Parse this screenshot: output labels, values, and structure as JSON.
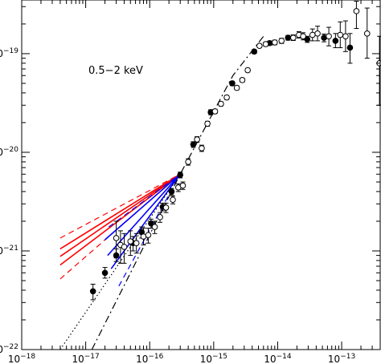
{
  "chart_data": {
    "type": "scatter",
    "title": "",
    "xlabel": "",
    "ylabel": "",
    "annotation": "0.5−2 keV",
    "x_scale": "log",
    "y_scale": "log",
    "xlim": [
      1e-18,
      4e-13
    ],
    "ylim": [
      1e-22,
      3.5e-19
    ],
    "x_tick_labels": [
      {
        "value": 1e-18,
        "mant": "10",
        "exp": "−18"
      },
      {
        "value": 1e-17,
        "mant": "10",
        "exp": "−17"
      },
      {
        "value": 1e-16,
        "mant": "10",
        "exp": "−16"
      },
      {
        "value": 1e-15,
        "mant": "10",
        "exp": "−15"
      },
      {
        "value": 1e-14,
        "mant": "10",
        "exp": "−14"
      },
      {
        "value": 1e-13,
        "mant": "10",
        "exp": "−13"
      }
    ],
    "y_tick_labels": [
      {
        "value": 1e-22,
        "mant": "10",
        "exp": "−22"
      },
      {
        "value": 1e-21,
        "mant": "10",
        "exp": "−21"
      },
      {
        "value": 1e-20,
        "mant": "10",
        "exp": "−20"
      },
      {
        "value": 1e-19,
        "mant": "10",
        "exp": "−19"
      }
    ],
    "series": [
      {
        "marker": "filled-circle",
        "points": [
          {
            "x": 1.3e-17,
            "y": 3.9e-22,
            "lo": 3.2e-22,
            "hi": 4.6e-22
          },
          {
            "x": 2e-17,
            "y": 6e-22,
            "lo": 5.3e-22,
            "hi": 6.8e-22
          },
          {
            "x": 3e-17,
            "y": 9e-22,
            "lo": 7.8e-22,
            "hi": 1.05e-21
          },
          {
            "x": 5.5e-17,
            "y": 1.2e-21,
            "lo": 1e-21,
            "hi": 1.4e-21
          },
          {
            "x": 7.5e-17,
            "y": 1.55e-21,
            "lo": 1.35e-21,
            "hi": 1.75e-21
          },
          {
            "x": 1.05e-16,
            "y": 1.9e-21,
            "lo": 1.7e-21,
            "hi": 2.1e-21
          },
          {
            "x": 1.6e-16,
            "y": 2.8e-21,
            "lo": 2.55e-21,
            "hi": 3.05e-21
          },
          {
            "x": 2.2e-16,
            "y": 4e-21,
            "lo": 3.7e-21,
            "hi": 4.3e-21
          },
          {
            "x": 3e-16,
            "y": 5.9e-21,
            "lo": 5.5e-21,
            "hi": 6.3e-21
          },
          {
            "x": 4.8e-16,
            "y": 1.2e-20,
            "lo": 1.12e-20,
            "hi": 1.28e-20
          },
          {
            "x": 9e-16,
            "y": 2.55e-20,
            "lo": 2.4e-20,
            "hi": 2.7e-20
          },
          {
            "x": 1.95e-15,
            "y": 5e-20,
            "lo": 4.75e-20,
            "hi": 5.25e-20
          },
          {
            "x": 4.3e-15,
            "y": 1.05e-19,
            "lo": 1e-19,
            "hi": 1.1e-19
          },
          {
            "x": 7.5e-15,
            "y": 1.28e-19,
            "lo": 1.22e-19,
            "hi": 1.34e-19
          },
          {
            "x": 1.45e-14,
            "y": 1.45e-19,
            "lo": 1.37e-19,
            "hi": 1.53e-19
          },
          {
            "x": 2.9e-14,
            "y": 1.4e-19,
            "lo": 1.3e-19,
            "hi": 1.5e-19
          },
          {
            "x": 5.3e-14,
            "y": 1.45e-19,
            "lo": 1.32e-19,
            "hi": 1.58e-19
          },
          {
            "x": 8e-14,
            "y": 1.35e-19,
            "lo": 1.15e-19,
            "hi": 1.6e-19
          },
          {
            "x": 1.35e-13,
            "y": 1.15e-19,
            "lo": 8e-20,
            "hi": 1.6e-19
          }
        ]
      },
      {
        "marker": "open-circle",
        "points": [
          {
            "x": 3e-17,
            "y": 1.35e-21,
            "lo": 8.5e-22,
            "hi": 2e-21
          },
          {
            "x": 3.5e-17,
            "y": 1.15e-21,
            "lo": 7.5e-22,
            "hi": 1.6e-21
          },
          {
            "x": 4e-17,
            "y": 1.1e-21,
            "lo": 7.5e-22,
            "hi": 1.5e-21
          },
          {
            "x": 5e-17,
            "y": 1.25e-21,
            "lo": 9e-22,
            "hi": 1.6e-21
          },
          {
            "x": 6.2e-17,
            "y": 1.2e-21,
            "lo": 9.5e-22,
            "hi": 1.5e-21
          },
          {
            "x": 8e-17,
            "y": 1.4e-21,
            "lo": 1.15e-21,
            "hi": 1.7e-21
          },
          {
            "x": 9.5e-17,
            "y": 1.45e-21,
            "lo": 1.2e-21,
            "hi": 1.7e-21
          },
          {
            "x": 1.2e-16,
            "y": 1.75e-21,
            "lo": 1.5e-21,
            "hi": 2e-21
          },
          {
            "x": 1.45e-16,
            "y": 2.2e-21,
            "lo": 1.95e-21,
            "hi": 2.45e-21
          },
          {
            "x": 1.8e-16,
            "y": 2.75e-21,
            "lo": 2.45e-21,
            "hi": 3.05e-21
          },
          {
            "x": 2.3e-16,
            "y": 3.3e-21,
            "lo": 3e-21,
            "hi": 3.6e-21
          },
          {
            "x": 2.8e-16,
            "y": 4.4e-21,
            "lo": 4e-21,
            "hi": 4.8e-21
          },
          {
            "x": 3.3e-16,
            "y": 4.6e-21,
            "lo": 4.2e-21,
            "hi": 5e-21
          },
          {
            "x": 4e-16,
            "y": 8e-21,
            "lo": 7.4e-21,
            "hi": 8.6e-21
          },
          {
            "x": 5.5e-16,
            "y": 1.35e-20,
            "lo": 1.26e-20,
            "hi": 1.44e-20
          },
          {
            "x": 6.5e-16,
            "y": 1.1e-20,
            "lo": 1.02e-20,
            "hi": 1.18e-20
          },
          {
            "x": 8e-16,
            "y": 1.95e-20,
            "lo": 1.84e-20,
            "hi": 2.06e-20
          },
          {
            "x": 1.05e-15,
            "y": 2.6e-20,
            "lo": 2.47e-20,
            "hi": 2.73e-20
          },
          {
            "x": 1.3e-15,
            "y": 3.1e-20,
            "lo": 2.95e-20,
            "hi": 3.25e-20
          },
          {
            "x": 1.6e-15,
            "y": 3.6e-20,
            "lo": 3.43e-20,
            "hi": 3.77e-20
          },
          {
            "x": 2.3e-15,
            "y": 4.5e-20,
            "lo": 4.3e-20,
            "hi": 4.7e-20
          },
          {
            "x": 2.8e-15,
            "y": 5.4e-20,
            "lo": 5.15e-20,
            "hi": 5.65e-20
          },
          {
            "x": 3.4e-15,
            "y": 6.8e-20,
            "lo": 6.5e-20,
            "hi": 7.1e-20
          },
          {
            "x": 5.2e-15,
            "y": 1.2e-19,
            "lo": 1.15e-19,
            "hi": 1.25e-19
          },
          {
            "x": 6.5e-15,
            "y": 1.25e-19,
            "lo": 1.19e-19,
            "hi": 1.31e-19
          },
          {
            "x": 9e-15,
            "y": 1.3e-19,
            "lo": 1.23e-19,
            "hi": 1.37e-19
          },
          {
            "x": 1.15e-14,
            "y": 1.35e-19,
            "lo": 1.27e-19,
            "hi": 1.43e-19
          },
          {
            "x": 1.75e-14,
            "y": 1.45e-19,
            "lo": 1.36e-19,
            "hi": 1.55e-19
          },
          {
            "x": 2.15e-14,
            "y": 1.55e-19,
            "lo": 1.44e-19,
            "hi": 1.67e-19
          },
          {
            "x": 2.5e-14,
            "y": 1.5e-19,
            "lo": 1.38e-19,
            "hi": 1.63e-19
          },
          {
            "x": 3.5e-14,
            "y": 1.55e-19,
            "lo": 1.35e-19,
            "hi": 1.78e-19
          },
          {
            "x": 4.2e-14,
            "y": 1.6e-19,
            "lo": 1.35e-19,
            "hi": 1.9e-19
          },
          {
            "x": 6.3e-14,
            "y": 1.5e-19,
            "lo": 1.2e-19,
            "hi": 1.85e-19
          },
          {
            "x": 9.5e-14,
            "y": 1.55e-19,
            "lo": 1.15e-19,
            "hi": 2.1e-19
          },
          {
            "x": 1.15e-13,
            "y": 1.5e-19,
            "lo": 1.05e-19,
            "hi": 2.15e-19
          },
          {
            "x": 1.7e-13,
            "y": 2.7e-19,
            "lo": 1.8e-19,
            "hi": 3.4e-19
          },
          {
            "x": 2.5e-13,
            "y": 1.6e-19,
            "lo": 9e-20,
            "hi": 2.9e-19
          },
          {
            "x": 3.9e-13,
            "y": 8e-20,
            "lo": 3e-20,
            "hi": 1.5e-19
          }
        ]
      }
    ],
    "curves": [
      {
        "color": "#ff0000",
        "dash": "dashed",
        "points": [
          [
            4e-18,
            1.35e-21
          ],
          [
            3e-16,
            6e-21
          ]
        ]
      },
      {
        "color": "#ff0000",
        "dash": "solid",
        "points": [
          [
            4e-18,
            1.05e-21
          ],
          [
            3e-16,
            6e-21
          ]
        ]
      },
      {
        "color": "#ff0000",
        "dash": "solid",
        "points": [
          [
            4e-18,
            8.8e-22
          ],
          [
            3e-16,
            6e-21
          ]
        ]
      },
      {
        "color": "#ff0000",
        "dash": "solid",
        "points": [
          [
            4e-18,
            7.2e-22
          ],
          [
            3e-16,
            6e-21
          ]
        ]
      },
      {
        "color": "#ff0000",
        "dash": "dashed",
        "points": [
          [
            4e-18,
            5.2e-22
          ],
          [
            3e-16,
            6e-21
          ]
        ]
      },
      {
        "color": "#0000ff",
        "dash": "dashed",
        "points": [
          [
            2.3e-17,
            1.75e-21
          ],
          [
            3e-16,
            6e-21
          ]
        ]
      },
      {
        "color": "#0000ff",
        "dash": "solid",
        "points": [
          [
            2e-17,
            1.3e-21
          ],
          [
            3e-16,
            6e-21
          ]
        ]
      },
      {
        "color": "#0000ff",
        "dash": "solid",
        "points": [
          [
            2.2e-17,
            9e-22
          ],
          [
            3e-16,
            6e-21
          ]
        ]
      },
      {
        "color": "#0000ff",
        "dash": "solid",
        "points": [
          [
            2.5e-17,
            6.6e-22
          ],
          [
            3e-16,
            6e-21
          ]
        ]
      },
      {
        "color": "#0000ff",
        "dash": "dashed",
        "points": [
          [
            3.3e-17,
            4.4e-22
          ],
          [
            3e-16,
            6e-21
          ]
        ]
      },
      {
        "color": "#000000",
        "dash": "dotted",
        "points": [
          [
            4e-18,
            1e-22
          ],
          [
            3e-16,
            6e-21
          ]
        ]
      },
      {
        "color": "#000000",
        "dash": "dashdot",
        "points": [
          [
            1.25e-17,
            1e-22
          ],
          [
            3e-16,
            6e-21
          ],
          [
            2e-15,
            6e-20
          ],
          [
            6e-15,
            1.5e-19
          ]
        ]
      }
    ]
  }
}
